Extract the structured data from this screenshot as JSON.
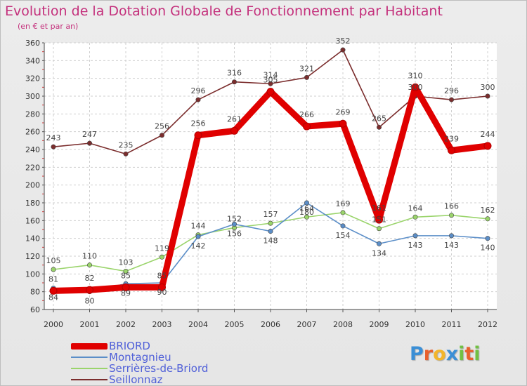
{
  "header": {
    "title": "Evolution de la Dotation Globale de Fonctionnement par Habitant",
    "subtitle": "(en € et par an)"
  },
  "logo": {
    "text": "Proxiti",
    "letters": [
      "P",
      "r",
      "o",
      "x",
      "i",
      "t",
      "i"
    ],
    "colors": [
      "#3b8fd6",
      "#e8602c",
      "#f2b52b",
      "#3b8fd6",
      "#71c043",
      "#e8602c",
      "#71c043"
    ]
  },
  "chart_data": {
    "type": "line",
    "title": "Evolution de la Dotation Globale de Fonctionnement par Habitant",
    "subtitle": "(en € et par an)",
    "xlabel": "",
    "ylabel": "",
    "categories": [
      "2000",
      "2001",
      "2002",
      "2003",
      "2004",
      "2005",
      "2006",
      "2007",
      "2008",
      "2009",
      "2010",
      "2011",
      "2012"
    ],
    "ylim": [
      60,
      360
    ],
    "yticks": [
      60,
      80,
      100,
      120,
      140,
      160,
      180,
      200,
      220,
      240,
      260,
      280,
      300,
      320,
      340,
      360
    ],
    "grid": true,
    "legend_position": "bottom-left",
    "series": [
      {
        "name": "Seillonnaz",
        "color": "#7b2d2d",
        "values": [
          243,
          247,
          235,
          256,
          296,
          316,
          314,
          321,
          352,
          265,
          300,
          296,
          300
        ],
        "labels": [
          "243",
          "247",
          "235",
          "256",
          "296",
          "316",
          "314",
          "321",
          "352",
          "265",
          "300",
          "296",
          "300"
        ]
      },
      {
        "name": "Serrières-de-Briord",
        "color": "#9ad46b",
        "values": [
          105,
          110,
          103,
          119,
          144,
          152,
          157,
          164,
          169,
          151,
          164,
          166,
          162
        ],
        "labels": [
          "105",
          "110",
          "103",
          "119",
          "144",
          "152",
          "157",
          "164",
          "169",
          "151",
          "164",
          "166",
          "162"
        ]
      },
      {
        "name": "Montagnieu",
        "color": "#5b8ec8",
        "values": [
          84,
          80,
          89,
          90,
          142,
          156,
          148,
          180,
          154,
          134,
          143,
          143,
          140
        ],
        "labels": [
          "84",
          "80",
          "89",
          "90",
          "142",
          "156",
          "148",
          "180",
          "154",
          "134",
          "143",
          "143",
          "140"
        ]
      },
      {
        "name": "BRIORD",
        "color": "#e00000",
        "values": [
          81,
          82,
          85,
          85,
          256,
          261,
          305,
          266,
          269,
          161,
          310,
          239,
          244
        ],
        "labels": [
          "81",
          "82",
          "85",
          "85",
          "256",
          "261",
          "305",
          "266",
          "269",
          "161",
          "310",
          "239",
          "244"
        ]
      }
    ]
  },
  "legend": {
    "items": [
      {
        "label": "BRIORD",
        "color": "#e00000",
        "thickness": 9
      },
      {
        "label": "Montagnieu",
        "color": "#5b8ec8",
        "thickness": 2
      },
      {
        "label": "Serrières-de-Briord",
        "color": "#9ad46b",
        "thickness": 2
      },
      {
        "label": "Seillonnaz",
        "color": "#7b2d2d",
        "thickness": 2
      }
    ]
  }
}
